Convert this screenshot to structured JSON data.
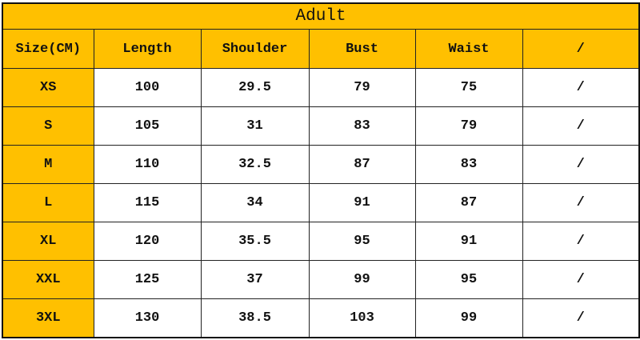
{
  "title": "Adult",
  "headers": [
    "Size(CM)",
    "Length",
    "Shoulder",
    "Bust",
    "Waist",
    "/"
  ],
  "rows": [
    [
      "XS",
      "100",
      "29.5",
      "79",
      "75",
      "/"
    ],
    [
      "S",
      "105",
      "31",
      "83",
      "79",
      "/"
    ],
    [
      "M",
      "110",
      "32.5",
      "87",
      "83",
      "/"
    ],
    [
      "L",
      "115",
      "34",
      "91",
      "87",
      "/"
    ],
    [
      "XL",
      "120",
      "35.5",
      "95",
      "91",
      "/"
    ],
    [
      "XXL",
      "125",
      "37",
      "99",
      "95",
      "/"
    ],
    [
      "3XL",
      "130",
      "38.5",
      "103",
      "99",
      "/"
    ]
  ],
  "colors": {
    "header_bg": "#FFC000",
    "cell_bg": "#FFFFFF",
    "border": "#222222"
  }
}
